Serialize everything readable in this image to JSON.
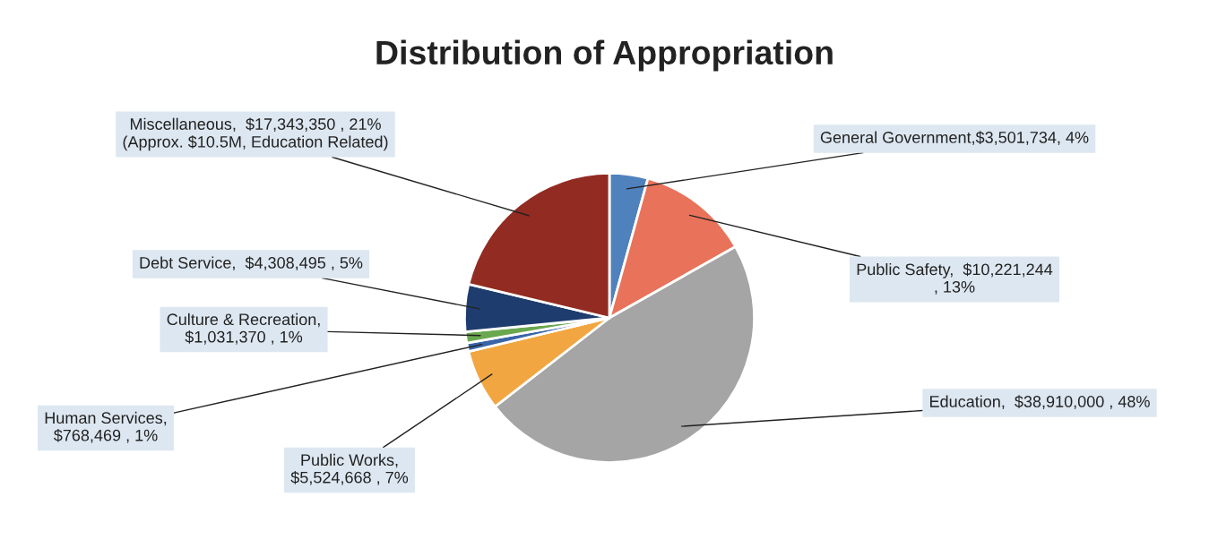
{
  "chart_data": {
    "type": "pie",
    "title": "Distribution of Appropriation",
    "categories": [
      "General Government,$3,501,734, 4%",
      "Public Safety,  $10,221,244\n, 13%",
      "Education,  $38,910,000 , 48%",
      "Public Works,\n$5,524,668 , 7%",
      "Human Services,\n$768,469 , 1%",
      "Culture & Recreation,\n$1,031,370 , 1%",
      "Debt Service,  $4,308,495 , 5%",
      "Miscellaneous,  $17,343,350 , 21%\n(Approx. $10.5M, Education Related)"
    ],
    "values": [
      3501734,
      10221244,
      38910000,
      5524668,
      768469,
      1031370,
      4308495,
      17343350
    ],
    "colors": [
      "#4f81bd",
      "#e8735a",
      "#a5a5a5",
      "#f2a641",
      "#3a64a8",
      "#6aa84f",
      "#1f3c6e",
      "#922b21"
    ],
    "legend": false
  }
}
